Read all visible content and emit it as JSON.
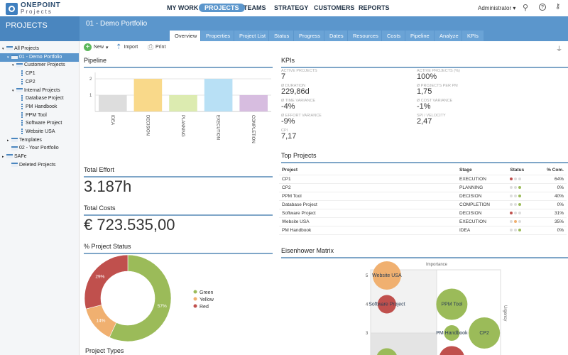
{
  "app": {
    "logo_top": "ONEPOINT",
    "logo_bottom": "Projects",
    "user": "Administrator"
  },
  "nav": [
    "MY WORK",
    "PROJECTS",
    "TEAMS",
    "STRATEGY",
    "CUSTOMERS",
    "REPORTS"
  ],
  "sidebar": {
    "title": "PROJECTS",
    "tree": [
      "All Projects",
      "01 - Demo Portfolio",
      "Customer Projects",
      "CP1",
      "CP2",
      "Internal Projects",
      "Database Project",
      "PM Handbook",
      "PPM Tool",
      "Software Project",
      "Website USA",
      "Templates",
      "02 - Your Portfolio",
      "SAFe",
      "Deleted Projects"
    ]
  },
  "header": {
    "title": "01 - Demo Portfolio",
    "tabs": [
      "Overview",
      "Properties",
      "Project List",
      "Status",
      "Progress",
      "Dates",
      "Resources",
      "Costs",
      "Pipeline",
      "Analyze",
      "KPIs"
    ]
  },
  "toolbar": {
    "new": "New",
    "import": "Import",
    "print": "Print"
  },
  "pipeline": {
    "title": "Pipeline"
  },
  "total_effort": {
    "title": "Total Effort",
    "value": "3.187h"
  },
  "total_costs": {
    "title": "Total Costs",
    "value": "€ 723.535,00"
  },
  "status_title": "% Project Status",
  "project_types_title": "Project Types",
  "kpis": {
    "title": "KPIs",
    "items": [
      {
        "label": "Active Projects",
        "value": "7"
      },
      {
        "label": "Active Projects (%)",
        "value": "100%"
      },
      {
        "label": "Ø Duration",
        "value": "229,86d"
      },
      {
        "label": "Ø Projects per PM",
        "value": "1,75"
      },
      {
        "label": "Ø Time Variance",
        "value": "-4%"
      },
      {
        "label": "Ø Cost Variance",
        "value": "-1%"
      },
      {
        "label": "Ø Effort Variance",
        "value": "-9%"
      },
      {
        "label": "SPI / Velocity",
        "value": "2,47"
      },
      {
        "label": "CPI",
        "value": "7,17"
      }
    ]
  },
  "top_projects": {
    "title": "Top Projects",
    "columns": [
      "Project",
      "Stage",
      "Status",
      "% Com."
    ],
    "rows": [
      {
        "project": "CP1",
        "stage": "EXECUTION",
        "status": "red",
        "pct": "64%"
      },
      {
        "project": "CP2",
        "stage": "PLANNING",
        "status": "green",
        "pct": "0%"
      },
      {
        "project": "PPM Tool",
        "stage": "DECISION",
        "status": "green",
        "pct": "40%"
      },
      {
        "project": "Database Project",
        "stage": "COMPLETION",
        "status": "green",
        "pct": "0%"
      },
      {
        "project": "Software Project",
        "stage": "DECISION",
        "status": "red",
        "pct": "31%"
      },
      {
        "project": "Website USA",
        "stage": "EXECUTION",
        "status": "yellow",
        "pct": "35%"
      },
      {
        "project": "PM Handbook",
        "stage": "IDEA",
        "status": "green",
        "pct": "0%"
      }
    ]
  },
  "colors": {
    "red": "#c0504d",
    "yellow": "#f0b070",
    "green": "#9bbb59",
    "accent": "#5b96cc"
  },
  "chart_data": [
    {
      "type": "bar",
      "title": "Pipeline",
      "categories": [
        "IDEA",
        "DECISION",
        "PLANNING",
        "EXECUTION",
        "COMPLETION"
      ],
      "values": [
        1,
        2,
        1,
        2,
        1
      ],
      "colors": [
        "#dddddd",
        "#f9d98a",
        "#dcebb0",
        "#b8e0f5",
        "#d7bde0"
      ],
      "yticks": [
        "1",
        "2"
      ],
      "ylim": [
        0,
        2.2
      ]
    },
    {
      "type": "pie",
      "title": "% Project Status",
      "labels": [
        "Green",
        "Yellow",
        "Red"
      ],
      "values": [
        57,
        14,
        29
      ],
      "value_labels": [
        "57%",
        "14%",
        "29%"
      ],
      "colors": [
        "#9bbb59",
        "#f0b070",
        "#c0504d"
      ],
      "legend": "right"
    },
    {
      "type": "scatter",
      "title": "Eisenhower Matrix",
      "xlabel": "Importance",
      "ylabel": "Urgency",
      "yticks": [
        "3",
        "4",
        "5"
      ],
      "points": [
        {
          "name": "Website USA",
          "x": 1,
          "y": 5,
          "size": 20,
          "color": "#f0b070"
        },
        {
          "name": "Software Project",
          "x": 1,
          "y": 4,
          "size": 13,
          "color": "#c0504d"
        },
        {
          "name": "PPM Tool",
          "x": 3,
          "y": 4,
          "size": 22,
          "color": "#9bbb59"
        },
        {
          "name": "PM Handbook",
          "x": 3,
          "y": 3,
          "size": 11,
          "color": "#9bbb59"
        },
        {
          "name": "CP2",
          "x": 4,
          "y": 3,
          "size": 22,
          "color": "#9bbb59"
        },
        {
          "name": "",
          "x": 1,
          "y": 2.1,
          "size": 15,
          "color": "#9bbb59"
        },
        {
          "name": "",
          "x": 3,
          "y": 2.1,
          "size": 18,
          "color": "#c0504d"
        }
      ]
    }
  ]
}
